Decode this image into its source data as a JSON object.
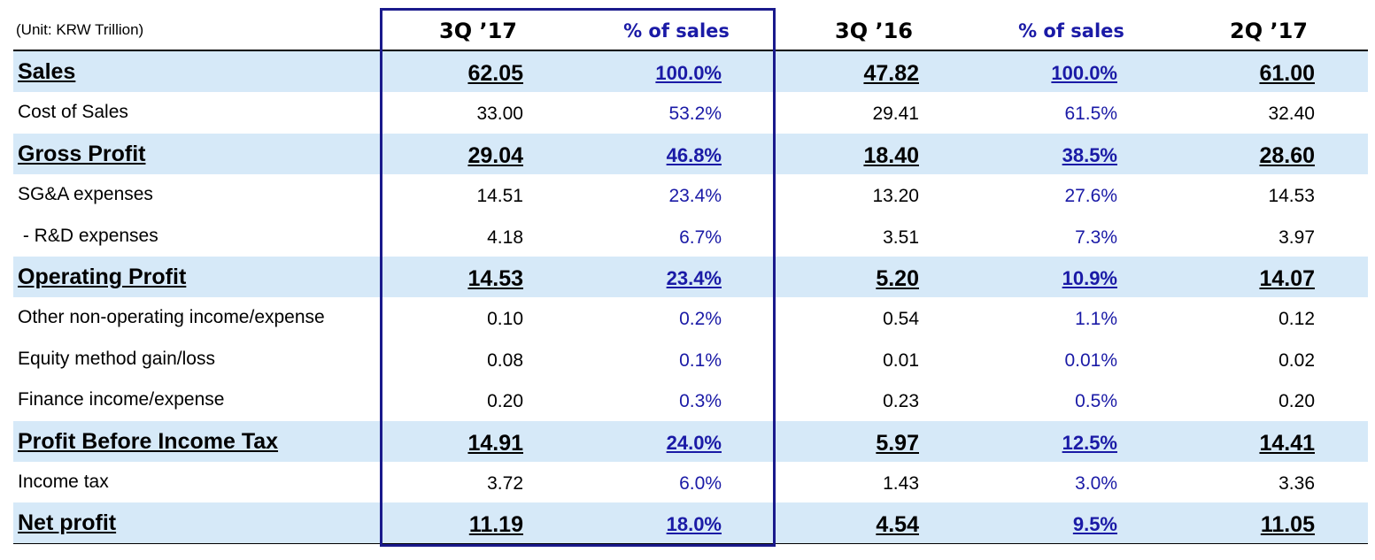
{
  "header": {
    "unit": "(Unit: KRW Trillion)",
    "columns": [
      "3Q ’17",
      "% of sales",
      "3Q ’16",
      "% of sales",
      "2Q ’17"
    ]
  },
  "rows": [
    {
      "label": "Sales",
      "emphasis": true,
      "values": [
        "62.05",
        "100.0%",
        "47.82",
        "100.0%",
        "61.00"
      ]
    },
    {
      "label": "Cost of Sales",
      "emphasis": false,
      "values": [
        "33.00",
        "53.2%",
        "29.41",
        "61.5%",
        "32.40"
      ]
    },
    {
      "label": "Gross Profit",
      "emphasis": true,
      "values": [
        "29.04",
        "46.8%",
        "18.40",
        "38.5%",
        "28.60"
      ]
    },
    {
      "label": "SG&A expenses",
      "emphasis": false,
      "values": [
        "14.51",
        "23.4%",
        "13.20",
        "27.6%",
        "14.53"
      ]
    },
    {
      "label": " - R&D expenses",
      "emphasis": false,
      "values": [
        "4.18",
        "6.7%",
        "3.51",
        "7.3%",
        "3.97"
      ]
    },
    {
      "label": "Operating Profit",
      "emphasis": true,
      "values": [
        "14.53",
        "23.4%",
        "5.20",
        "10.9%",
        "14.07"
      ]
    },
    {
      "label": "Other non-operating income/expense",
      "emphasis": false,
      "values": [
        "0.10",
        "0.2%",
        "0.54",
        "1.1%",
        "0.12"
      ]
    },
    {
      "label": "Equity method gain/loss",
      "emphasis": false,
      "values": [
        "0.08",
        "0.1%",
        "0.01",
        "0.01%",
        "0.02"
      ]
    },
    {
      "label": "Finance income/expense",
      "emphasis": false,
      "values": [
        "0.20",
        "0.3%",
        "0.23",
        "0.5%",
        "0.20"
      ]
    },
    {
      "label": "Profit Before Income Tax",
      "emphasis": true,
      "values": [
        "14.91",
        "24.0%",
        "5.97",
        "12.5%",
        "14.41"
      ]
    },
    {
      "label": "Income tax",
      "emphasis": false,
      "values": [
        "3.72",
        "6.0%",
        "1.43",
        "3.0%",
        "3.36"
      ]
    },
    {
      "label": "Net profit",
      "emphasis": true,
      "values": [
        "11.19",
        "18.0%",
        "4.54",
        "9.5%",
        "11.05"
      ]
    }
  ]
}
